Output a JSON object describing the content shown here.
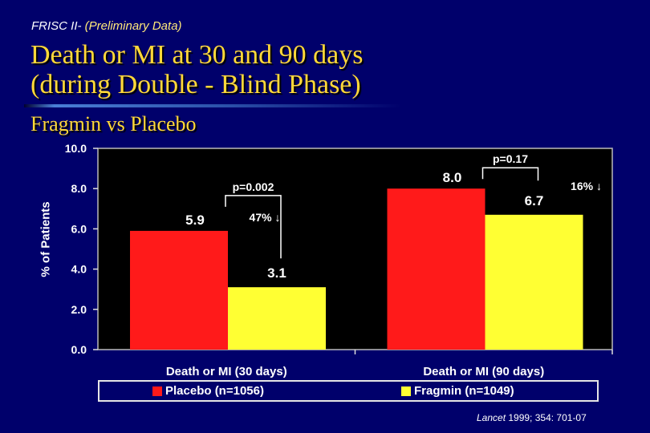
{
  "header": {
    "kicker_prefix": "FRISC II- ",
    "kicker_note": "(Preliminary Data)",
    "title_line1": "Death or MI at 30 and 90 days",
    "title_line2": "(during Double - Blind Phase)",
    "subtitle": "Fragmin vs Placebo"
  },
  "colors": {
    "background": "#00006b",
    "placebo": "#ff1a1a",
    "fragmin": "#ffff33",
    "plot_area": "#000000",
    "title": "#ffd83a"
  },
  "chart_data": {
    "type": "bar",
    "categories": [
      "Death or MI (30 days)",
      "Death or MI (90 days)"
    ],
    "series": [
      {
        "name": "Placebo (n=1056)",
        "values": [
          5.9,
          8.0
        ],
        "labels": [
          "5.9",
          "8.0"
        ]
      },
      {
        "name": "Fragmin (n=1049)",
        "values": [
          3.1,
          6.7
        ],
        "labels": [
          "3.1",
          "6.7"
        ]
      }
    ],
    "ylabel": "% of Patients",
    "ylim": [
      0,
      10
    ],
    "yticks": [
      "0.0",
      "2.0",
      "4.0",
      "6.0",
      "8.0",
      "10.0"
    ],
    "legend_position": "bottom",
    "grid": false,
    "annotations": [
      {
        "category": 0,
        "p_value": "p=0.002",
        "reduction": "47%"
      },
      {
        "category": 1,
        "p_value": "p=0.17",
        "reduction": "16%"
      }
    ],
    "arrow_symbol": "↓"
  },
  "citation": {
    "journal": "Lancet",
    "details": " 1999; 354: 701-07"
  }
}
